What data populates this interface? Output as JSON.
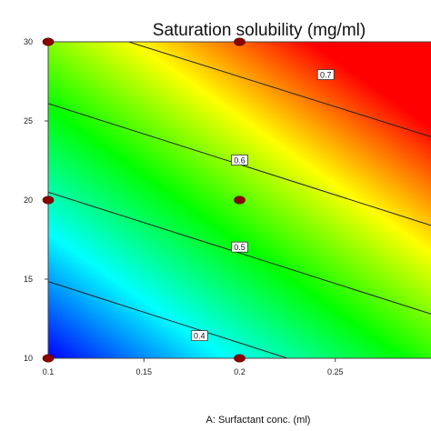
{
  "chart_data": {
    "type": "contour",
    "title": "Saturation solubility (mg/ml)",
    "xlabel": "A: Surfactant conc. (ml)",
    "ylabel": "",
    "xlim": [
      0.1,
      0.3
    ],
    "ylim": [
      10,
      30
    ],
    "xticks": [
      "0.1",
      "0.15",
      "0.2",
      "0.25"
    ],
    "yticks": [
      "10",
      "15",
      "20",
      "25",
      "30"
    ],
    "grid": false,
    "colormap": [
      "#0000ff",
      "#00ffff",
      "#00ff00",
      "#ffff00",
      "#ff0000"
    ],
    "value_range": [
      0.3,
      0.8
    ],
    "contours": [
      {
        "label": "0.4",
        "value": 0.4,
        "line": [
          [
            0.1,
            14.85
          ],
          [
            0.225,
            10
          ]
        ],
        "label_at": [
          0.179,
          11.4
        ]
      },
      {
        "label": "0.5",
        "value": 0.5,
        "line": [
          [
            0.1,
            20.5
          ],
          [
            0.3,
            12.8
          ]
        ],
        "label_at": [
          0.2,
          17.0
        ]
      },
      {
        "label": "0.6",
        "value": 0.6,
        "line": [
          [
            0.1,
            26.1
          ],
          [
            0.3,
            18.4
          ]
        ],
        "label_at": [
          0.2,
          22.5
        ]
      },
      {
        "label": "0.7",
        "value": 0.7,
        "line": [
          [
            0.142,
            30
          ],
          [
            0.3,
            24.0
          ]
        ],
        "label_at": [
          0.245,
          27.9
        ]
      }
    ],
    "design_points": [
      {
        "x": 0.1,
        "y": 30
      },
      {
        "x": 0.2,
        "y": 30
      },
      {
        "x": 0.1,
        "y": 20
      },
      {
        "x": 0.2,
        "y": 20
      },
      {
        "x": 0.1,
        "y": 10
      },
      {
        "x": 0.2,
        "y": 10
      }
    ]
  }
}
